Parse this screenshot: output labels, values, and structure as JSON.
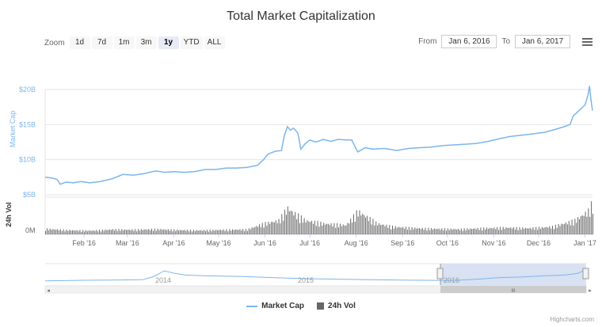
{
  "title": "Total Market Capitalization",
  "zoom": {
    "label": "Zoom",
    "buttons": [
      "1d",
      "7d",
      "1m",
      "3m",
      "1y",
      "YTD",
      "ALL"
    ],
    "active": "1y"
  },
  "range": {
    "from_label": "From",
    "from_value": "Jan 6, 2016",
    "to_label": "To",
    "to_value": "Jan 6, 2017"
  },
  "menu_icon": "hamburger-menu-icon",
  "colors": {
    "line": "#7cb5ec",
    "volume": "#666666",
    "navigator_mask": "#cedbf0",
    "grid": "#e6e6e6"
  },
  "chart_data": {
    "type": "line",
    "title": "Total Market Capitalization",
    "ylabel": "Market Cap",
    "ylabel_volume": "24h Vol",
    "y_ticks": [
      "$20B",
      "$15B",
      "$10B",
      "$5B"
    ],
    "y_tick_values": [
      20,
      15,
      10,
      5
    ],
    "ylim": [
      5,
      20
    ],
    "volume_tick": "0M",
    "x_ticks": [
      "Feb '16",
      "Mar '16",
      "Apr '16",
      "May '16",
      "Jun '16",
      "Jul '16",
      "Aug '16",
      "Sep '16",
      "Oct '16",
      "Nov '16",
      "Dec '16",
      "Jan '17"
    ],
    "x_range": [
      "2016-01-06",
      "2017-01-06"
    ],
    "series": [
      {
        "name": "Market Cap",
        "unit": "billion USD",
        "points": [
          [
            "2016-01-06",
            7.5
          ],
          [
            "2016-01-10",
            7.4
          ],
          [
            "2016-01-14",
            7.2
          ],
          [
            "2016-01-16",
            6.5
          ],
          [
            "2016-01-20",
            6.8
          ],
          [
            "2016-01-25",
            6.7
          ],
          [
            "2016-01-30",
            6.9
          ],
          [
            "2016-02-05",
            6.7
          ],
          [
            "2016-02-12",
            6.9
          ],
          [
            "2016-02-20",
            7.3
          ],
          [
            "2016-02-27",
            7.9
          ],
          [
            "2016-03-05",
            7.8
          ],
          [
            "2016-03-12",
            8.0
          ],
          [
            "2016-03-20",
            8.4
          ],
          [
            "2016-03-26",
            8.2
          ],
          [
            "2016-04-01",
            8.3
          ],
          [
            "2016-04-08",
            8.2
          ],
          [
            "2016-04-15",
            8.3
          ],
          [
            "2016-04-22",
            8.6
          ],
          [
            "2016-04-29",
            8.6
          ],
          [
            "2016-05-06",
            8.8
          ],
          [
            "2016-05-13",
            8.8
          ],
          [
            "2016-05-20",
            8.9
          ],
          [
            "2016-05-27",
            9.2
          ],
          [
            "2016-05-31",
            10.0
          ],
          [
            "2016-06-03",
            10.8
          ],
          [
            "2016-06-08",
            11.2
          ],
          [
            "2016-06-12",
            11.3
          ],
          [
            "2016-06-14",
            13.5
          ],
          [
            "2016-06-16",
            14.7
          ],
          [
            "2016-06-18",
            14.2
          ],
          [
            "2016-06-20",
            14.5
          ],
          [
            "2016-06-23",
            13.8
          ],
          [
            "2016-06-25",
            11.5
          ],
          [
            "2016-06-28",
            12.3
          ],
          [
            "2016-07-01",
            12.8
          ],
          [
            "2016-07-05",
            12.5
          ],
          [
            "2016-07-10",
            12.9
          ],
          [
            "2016-07-15",
            12.6
          ],
          [
            "2016-07-20",
            12.9
          ],
          [
            "2016-07-25",
            12.8
          ],
          [
            "2016-07-29",
            12.8
          ],
          [
            "2016-08-02",
            11.1
          ],
          [
            "2016-08-07",
            11.7
          ],
          [
            "2016-08-12",
            11.5
          ],
          [
            "2016-08-20",
            11.6
          ],
          [
            "2016-08-28",
            11.3
          ],
          [
            "2016-09-05",
            11.6
          ],
          [
            "2016-09-12",
            11.7
          ],
          [
            "2016-09-20",
            11.8
          ],
          [
            "2016-09-28",
            12.0
          ],
          [
            "2016-10-05",
            12.1
          ],
          [
            "2016-10-12",
            12.2
          ],
          [
            "2016-10-20",
            12.3
          ],
          [
            "2016-10-28",
            12.6
          ],
          [
            "2016-11-05",
            13.0
          ],
          [
            "2016-11-12",
            13.3
          ],
          [
            "2016-11-20",
            13.5
          ],
          [
            "2016-11-28",
            13.7
          ],
          [
            "2016-12-05",
            13.9
          ],
          [
            "2016-12-12",
            14.3
          ],
          [
            "2016-12-18",
            14.7
          ],
          [
            "2016-12-22",
            15.0
          ],
          [
            "2016-12-24",
            16.2
          ],
          [
            "2016-12-28",
            17.0
          ],
          [
            "2017-01-01",
            17.8
          ],
          [
            "2017-01-03",
            19.2
          ],
          [
            "2017-01-04",
            20.5
          ],
          [
            "2017-01-05",
            18.5
          ],
          [
            "2017-01-06",
            17.0
          ]
        ]
      },
      {
        "name": "24h Vol",
        "type": "column",
        "note": "relative daily volume, 0-1 of pane height",
        "points": [
          [
            "2016-01-06",
            0.18
          ],
          [
            "2016-01-20",
            0.14
          ],
          [
            "2016-02-05",
            0.12
          ],
          [
            "2016-02-20",
            0.16
          ],
          [
            "2016-03-05",
            0.15
          ],
          [
            "2016-03-20",
            0.17
          ],
          [
            "2016-04-05",
            0.14
          ],
          [
            "2016-04-20",
            0.13
          ],
          [
            "2016-05-05",
            0.15
          ],
          [
            "2016-05-20",
            0.16
          ],
          [
            "2016-05-31",
            0.35
          ],
          [
            "2016-06-10",
            0.45
          ],
          [
            "2016-06-16",
            0.85
          ],
          [
            "2016-06-20",
            0.7
          ],
          [
            "2016-06-28",
            0.45
          ],
          [
            "2016-07-10",
            0.35
          ],
          [
            "2016-07-25",
            0.3
          ],
          [
            "2016-08-02",
            0.75
          ],
          [
            "2016-08-15",
            0.35
          ],
          [
            "2016-08-25",
            0.25
          ],
          [
            "2016-09-10",
            0.2
          ],
          [
            "2016-09-25",
            0.18
          ],
          [
            "2016-10-10",
            0.17
          ],
          [
            "2016-10-25",
            0.2
          ],
          [
            "2016-11-10",
            0.22
          ],
          [
            "2016-11-25",
            0.2
          ],
          [
            "2016-12-10",
            0.25
          ],
          [
            "2016-12-25",
            0.45
          ],
          [
            "2017-01-03",
            0.75
          ],
          [
            "2017-01-05",
            0.95
          ]
        ]
      }
    ],
    "navigator": {
      "x_labels": [
        "2014",
        "2015",
        "2016"
      ],
      "selected_from": "2016-01-06",
      "selected_to": "2017-01-06",
      "scrollbar_grip": "III"
    }
  },
  "legend": [
    {
      "name": "Market Cap",
      "marker": "line"
    },
    {
      "name": "24h Vol",
      "marker": "box"
    }
  ],
  "credits": "Highcharts.com"
}
